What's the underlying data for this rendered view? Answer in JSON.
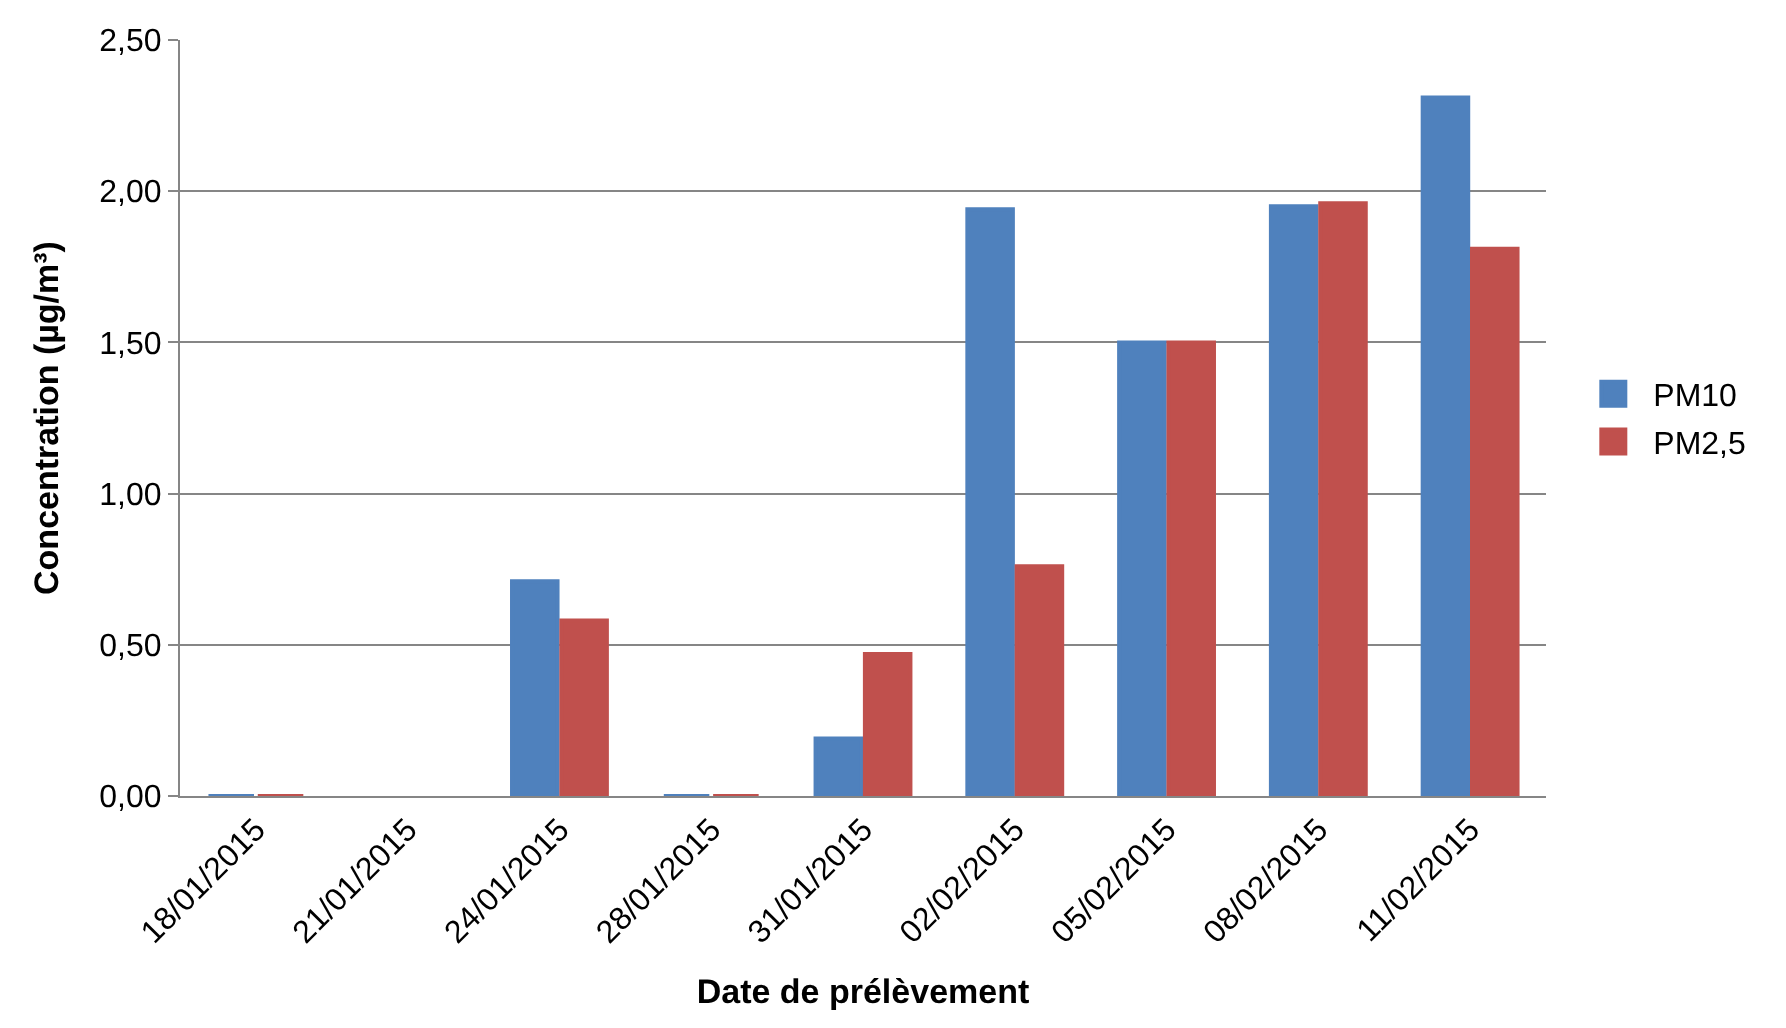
{
  "chart_data": {
    "type": "bar",
    "categories": [
      "18/01/2015",
      "21/01/2015",
      "24/01/2015",
      "28/01/2015",
      "31/01/2015",
      "02/02/2015",
      "05/02/2015",
      "08/02/2015",
      "11/02/2015"
    ],
    "series": [
      {
        "name": "PM10",
        "color": "#4f81bd",
        "values": [
          0,
          null,
          0.71,
          0,
          0.19,
          1.94,
          1.5,
          1.95,
          2.31
        ]
      },
      {
        "name": "PM2,5",
        "color": "#c0504d",
        "values": [
          0,
          null,
          0.58,
          0,
          0.47,
          0.76,
          1.5,
          1.96,
          1.81
        ]
      }
    ],
    "xlabel": "Date de prélèvement",
    "ylabel": "Concentration (µg/m³)",
    "ylim": [
      0,
      2.5
    ],
    "yticks": [
      {
        "value": 0,
        "label": "0,00"
      },
      {
        "value": 0.5,
        "label": "0,50"
      },
      {
        "value": 1,
        "label": "1,00"
      },
      {
        "value": 1.5,
        "label": "1,50"
      },
      {
        "value": 2,
        "label": "2,00"
      },
      {
        "value": 2.5,
        "label": "2,50"
      }
    ],
    "grid": "y",
    "legend": "right"
  }
}
